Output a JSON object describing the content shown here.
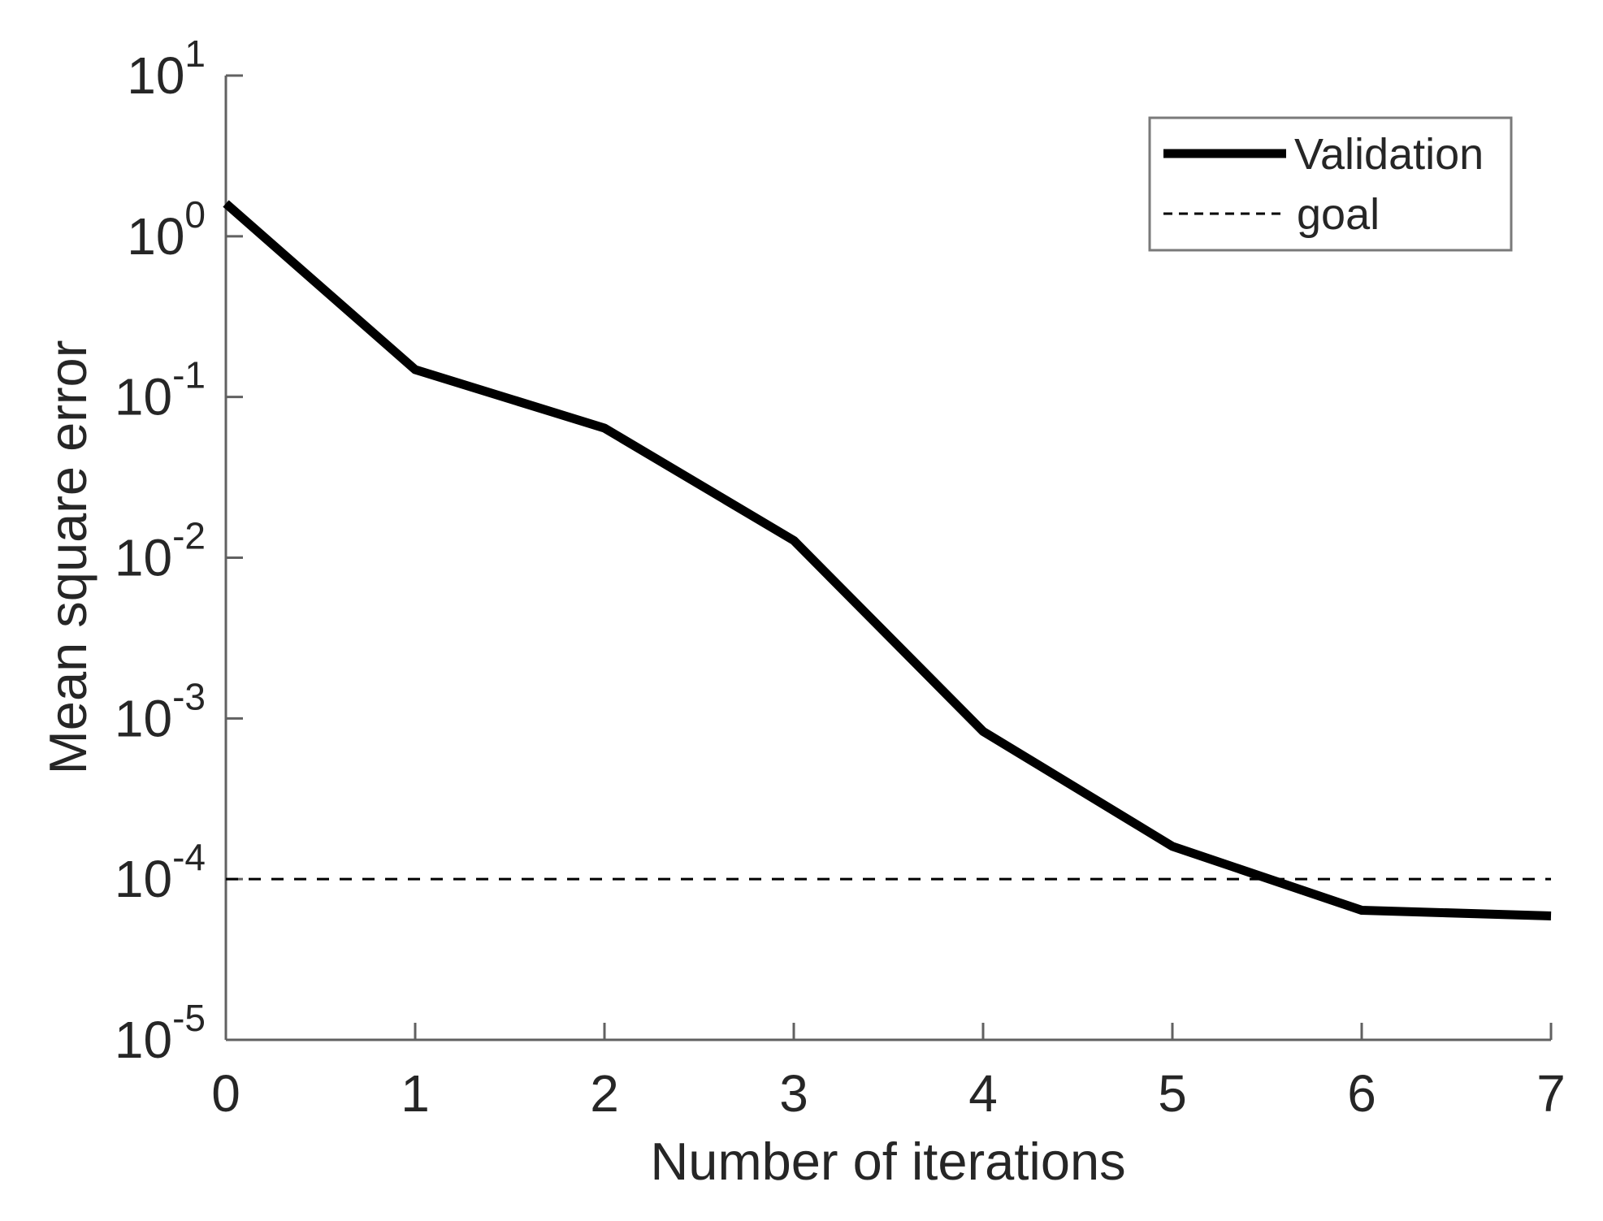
{
  "figure": {
    "background": "#ffffff"
  },
  "chart_data": {
    "type": "line",
    "title": "",
    "xlabel": "Number of iterations",
    "ylabel": "Mean square error",
    "yscale": "log",
    "xlim": [
      0,
      7
    ],
    "ylim": [
      1e-05,
      10
    ],
    "grid": false,
    "x_ticks": [
      0,
      1,
      2,
      3,
      4,
      5,
      6,
      7
    ],
    "y_tick_exponents": [
      1,
      0,
      -1,
      -2,
      -3,
      -4,
      -5
    ],
    "x": [
      0,
      1,
      2,
      3,
      4,
      5,
      6,
      7
    ],
    "series": [
      {
        "name": "Validation",
        "values": [
          1.6,
          0.148,
          0.064,
          0.0128,
          0.00083,
          0.00016,
          6.4e-05,
          5.9e-05
        ],
        "line_style": "solid",
        "line_width": 11,
        "color": "#000000"
      }
    ],
    "reference_lines": [
      {
        "name": "goal",
        "value": 0.0001,
        "line_style": "dashed",
        "line_width": 3,
        "color": "#000000"
      }
    ],
    "legend": {
      "position": "top-right",
      "entries": [
        {
          "label": "Validation",
          "sample": "thick-solid"
        },
        {
          "label": "goal",
          "sample": "thin-dashed"
        }
      ]
    },
    "colors": {
      "axis": "#616161",
      "text": "#262626",
      "line": "#000000",
      "legend_border": "#7a7a7a"
    }
  }
}
